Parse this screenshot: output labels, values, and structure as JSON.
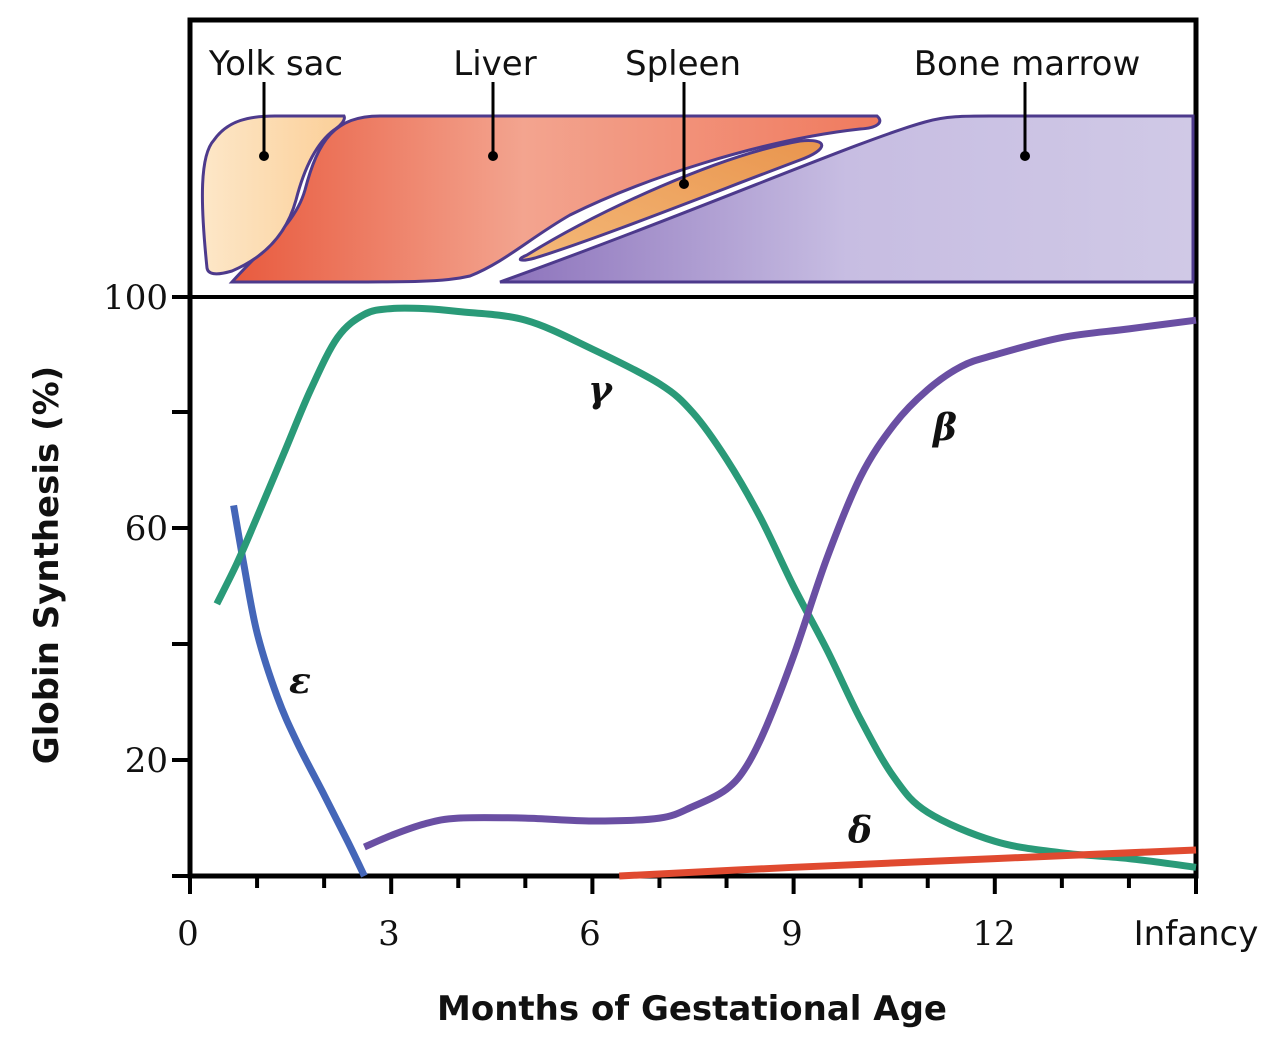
{
  "chart_data": {
    "type": "line",
    "xlabel": "Months of Gestational Age",
    "ylabel": "Globin Synthesis (%)",
    "xlim": [
      0,
      15
    ],
    "ylim": [
      0,
      100
    ],
    "x_tick_labels": [
      "0",
      "3",
      "6",
      "9",
      "12",
      "Infancy"
    ],
    "y_tick_labels": [
      "20",
      "60",
      "100"
    ],
    "grid": false,
    "legend": "none (series labelled directly on curves)",
    "sites": [
      {
        "label": "Yolk sac",
        "color": "#fde3c0"
      },
      {
        "label": "Liver",
        "color": "#ee8068"
      },
      {
        "label": "Spleen",
        "color": "#f1a85e"
      },
      {
        "label": "Bone marrow",
        "color": "#c9c0e0"
      }
    ],
    "series": [
      {
        "name": "ε",
        "color": "#4466b8",
        "x": [
          0.65,
          0.8,
          1.0,
          1.3,
          1.6,
          2.0,
          2.35,
          2.6
        ],
        "y": [
          64,
          54,
          42,
          31,
          23,
          14,
          6,
          0
        ]
      },
      {
        "name": "γ",
        "color": "#2a9a78",
        "x": [
          0.4,
          0.7,
          1.0,
          1.4,
          1.8,
          2.2,
          2.6,
          3.0,
          3.5,
          4.0,
          5.0,
          6.0,
          7.0,
          7.5,
          8.0,
          8.5,
          9.0,
          9.5,
          10.0,
          10.5,
          11.0,
          12.0,
          13.0,
          14.0,
          15.0
        ],
        "y": [
          47,
          54,
          62,
          73,
          84,
          93,
          97,
          98,
          98,
          97.5,
          96,
          91,
          85,
          80,
          72,
          62,
          50,
          39,
          27,
          17,
          11,
          6,
          4,
          3,
          1.5
        ]
      },
      {
        "name": "β",
        "color": "#6a4fa3",
        "x": [
          2.6,
          3.0,
          3.5,
          4.0,
          5.0,
          6.0,
          7.0,
          7.5,
          8.0,
          8.3,
          8.6,
          9.0,
          9.5,
          10.0,
          10.5,
          11.0,
          11.5,
          12.0,
          13.0,
          14.0,
          15.0
        ],
        "y": [
          5,
          7,
          9,
          10,
          10,
          9.5,
          10,
          12,
          15,
          19,
          26,
          38,
          55,
          69,
          78,
          84,
          88,
          90,
          93,
          94.5,
          96
        ]
      },
      {
        "name": "δ",
        "color": "#e04a30",
        "x": [
          6.4,
          9.0,
          12.0,
          15.0
        ],
        "y": [
          0,
          1.5,
          3,
          4.5
        ]
      }
    ]
  }
}
